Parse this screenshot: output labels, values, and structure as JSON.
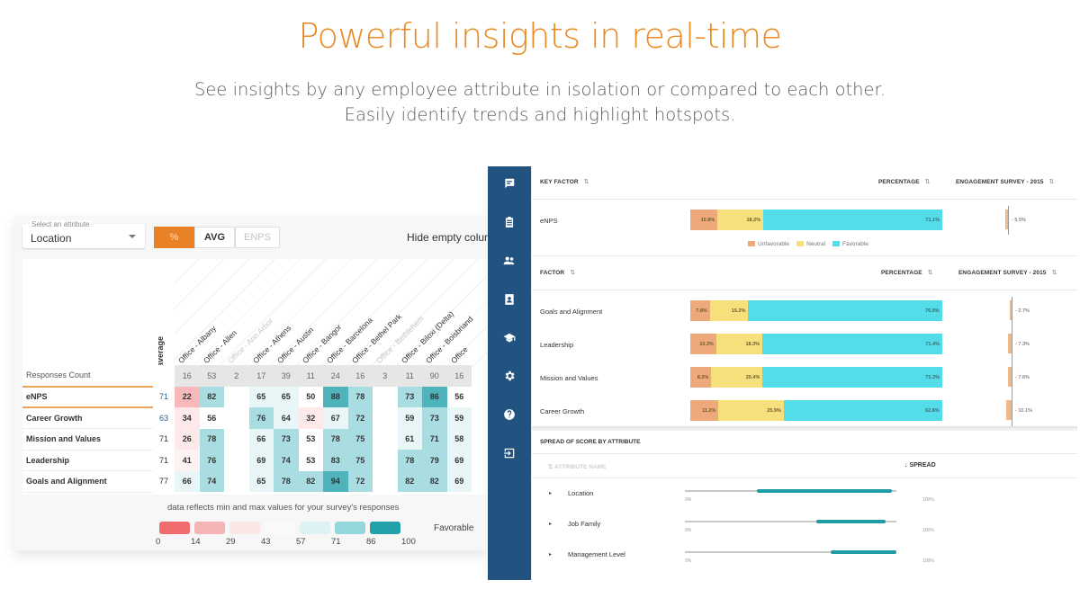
{
  "hero": {
    "title": "Powerful insights in real-time",
    "subtitle_line1": "See insights by any employee attribute in isolation or compared to each other.",
    "subtitle_line2": "Easily identify trends and highlight hotspots."
  },
  "left_panel": {
    "attribute_select": {
      "label": "Select an attribute",
      "value": "Location"
    },
    "modes": [
      {
        "label": "%",
        "state": "active"
      },
      {
        "label": "AVG",
        "state": "normal"
      },
      {
        "label": "ENPS",
        "state": "disabled"
      }
    ],
    "hide_empty_label": "Hide empty colur",
    "average_label": "average",
    "columns": [
      {
        "label": "Office - Albany",
        "dim": false
      },
      {
        "label": "Office - Allen",
        "dim": false
      },
      {
        "label": "Office - Ann Arbor",
        "dim": true
      },
      {
        "label": "Office - Athens",
        "dim": false
      },
      {
        "label": "Office - Austin",
        "dim": false
      },
      {
        "label": "Office - Bangor",
        "dim": false
      },
      {
        "label": "Office - Barcelona",
        "dim": false
      },
      {
        "label": "Office - Bethel Park",
        "dim": false
      },
      {
        "label": "Office - Bethlehem",
        "dim": true
      },
      {
        "label": "Office - Biloxi (Delta)",
        "dim": false
      },
      {
        "label": "Office - Boisbriand",
        "dim": false
      },
      {
        "label": "Office",
        "dim": false
      }
    ],
    "responses_count": {
      "label": "Responses Count",
      "values": [
        "16",
        "53",
        "2",
        "17",
        "39",
        "11",
        "24",
        "16",
        "3",
        "11",
        "90",
        "16"
      ]
    },
    "rows": [
      {
        "name": "eNPS",
        "average": "71",
        "avg_color": "blue",
        "values": [
          "22",
          "82",
          "",
          "65",
          "65",
          "50",
          "88",
          "78",
          "",
          "73",
          "86",
          "56"
        ]
      },
      {
        "name": "Career Growth",
        "average": "63",
        "avg_color": "blue",
        "values": [
          "34",
          "56",
          "",
          "76",
          "64",
          "32",
          "67",
          "72",
          "",
          "59",
          "73",
          "59"
        ]
      },
      {
        "name": "Mission and Values",
        "average": "71",
        "avg_color": "normal",
        "values": [
          "26",
          "78",
          "",
          "66",
          "73",
          "53",
          "78",
          "75",
          "",
          "61",
          "71",
          "58"
        ]
      },
      {
        "name": "Leadership",
        "average": "71",
        "avg_color": "normal",
        "values": [
          "41",
          "76",
          "",
          "69",
          "74",
          "53",
          "83",
          "75",
          "",
          "78",
          "79",
          "69"
        ]
      },
      {
        "name": "Goals and Alignment",
        "average": "77",
        "avg_color": "normal",
        "values": [
          "66",
          "74",
          "",
          "65",
          "78",
          "82",
          "94",
          "72",
          "",
          "82",
          "82",
          "69"
        ]
      }
    ],
    "legend": {
      "note": "data reflects min and max values for your survey's responses",
      "ticks": [
        "0",
        "14",
        "29",
        "43",
        "57",
        "71",
        "86",
        "100"
      ],
      "swatch_colors": [
        "#ef6b6e",
        "#f4b4b6",
        "#fbe6e6",
        "#ffffff",
        "#ddf3f3",
        "#95d6db",
        "#24a2ac"
      ],
      "label": "Favorable"
    }
  },
  "sidebar": {
    "icons": [
      "chat-icon",
      "clipboard-icon",
      "people-icon",
      "contact-card-icon",
      "graduation-cap-icon",
      "gear-icon",
      "help-icon",
      "logout-icon"
    ]
  },
  "key_factor": {
    "header": {
      "col1": "KEY FACTOR",
      "col2": "PERCENTAGE",
      "col3": "ENGAGEMENT SURVEY - 2015"
    },
    "row": {
      "name": "eNPS",
      "unfavorable": "10.8%",
      "neutral": "18.2%",
      "favorable": "71.1%",
      "unf_pct": 10.8,
      "neu_pct": 18.2,
      "fav_pct": 71.1,
      "delta": "- 5.5%"
    },
    "legend": [
      "Unfavorable",
      "Neutral",
      "Favorable"
    ],
    "colors": {
      "unfavorable": "#eea97a",
      "neutral": "#f6e07c",
      "favorable": "#53dde9"
    }
  },
  "factors": {
    "header": {
      "col1": "FACTOR",
      "col2": "PERCENTAGE",
      "col3": "ENGAGEMENT SURVEY - 2015"
    },
    "rows": [
      {
        "name": "Goals and Alignment",
        "unfavorable": "7.8%",
        "neutral": "15.2%",
        "favorable": "76.9%",
        "unf_pct": 7.8,
        "neu_pct": 15.2,
        "fav_pct": 76.9,
        "delta": "- 2.7%"
      },
      {
        "name": "Leadership",
        "unfavorable": "10.3%",
        "neutral": "18.3%",
        "favorable": "71.4%",
        "unf_pct": 10.3,
        "neu_pct": 18.3,
        "fav_pct": 71.4,
        "delta": "- 7.3%"
      },
      {
        "name": "Mission and Values",
        "unfavorable": "8.3%",
        "neutral": "20.4%",
        "favorable": "71.3%",
        "unf_pct": 8.3,
        "neu_pct": 20.4,
        "fav_pct": 71.3,
        "delta": "- 7.6%"
      },
      {
        "name": "Career Growth",
        "unfavorable": "11.2%",
        "neutral": "25.9%",
        "favorable": "62.8%",
        "unf_pct": 11.2,
        "neu_pct": 25.9,
        "fav_pct": 62.8,
        "delta": "- 10.1%"
      }
    ]
  },
  "spread": {
    "title": "SPREAD OF SCORE BY ATTRIBUTE",
    "col_attribute": "ATTRIBUTE NAME",
    "col_spread": "SPREAD",
    "min_label": "0%",
    "max_label": "100%",
    "rows": [
      {
        "name": "Location",
        "from": 34,
        "to": 98
      },
      {
        "name": "Job Family",
        "from": 62,
        "to": 95
      },
      {
        "name": "Management Level",
        "from": 69,
        "to": 100
      }
    ]
  }
}
